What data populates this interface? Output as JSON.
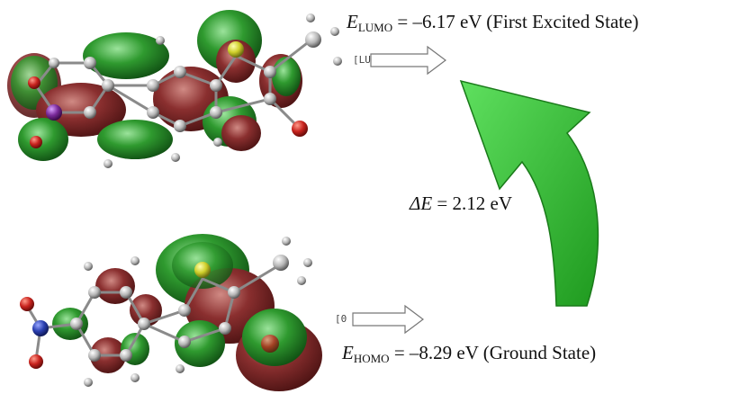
{
  "lumo": {
    "symbol": "E",
    "subscript": "LUMO",
    "value": "= –6.17 eV (First Excited State)",
    "tag": "[LU"
  },
  "homo": {
    "symbol": "E",
    "subscript": "HOMO",
    "value": "= –8.29 eV (Ground State)",
    "tag": "[0"
  },
  "gap": {
    "symbol": "ΔE",
    "value": "= 2.12 eV"
  },
  "colors": {
    "orbital_green": "#2f9a2f",
    "orbital_red": "#8a2f2f",
    "arrow_green": "#38c238",
    "atom_grey": "#b5b5b5",
    "atom_nitrogen": "#2a3fb0",
    "atom_oxygen": "#c8231e",
    "atom_sulfur": "#cfcf2a",
    "atom_iodine": "#7a2a9a"
  }
}
